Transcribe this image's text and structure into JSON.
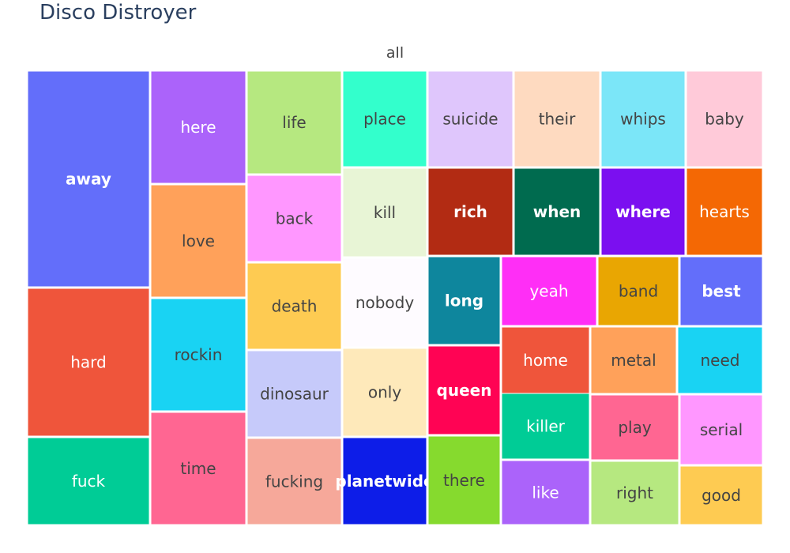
{
  "chart_data": {
    "type": "treemap",
    "title": "Disco Distroyer",
    "root": "all",
    "items": [
      {
        "label": "away",
        "value": 4,
        "color": "#636efa"
      },
      {
        "label": "hard",
        "value": 3,
        "color": "#ef553b"
      },
      {
        "label": "fuck",
        "value": 2,
        "color": "#00cc96"
      },
      {
        "label": "here",
        "value": 2,
        "color": "#ab63fa"
      },
      {
        "label": "love",
        "value": 2,
        "color": "#ffa15a"
      },
      {
        "label": "rockin",
        "value": 2,
        "color": "#19d3f3"
      },
      {
        "label": "time",
        "value": 2,
        "color": "#ff6692"
      },
      {
        "label": "life",
        "value": 2,
        "color": "#b6e880"
      },
      {
        "label": "back",
        "value": 2,
        "color": "#ff97ff"
      },
      {
        "label": "death",
        "value": 2,
        "color": "#fecb52"
      },
      {
        "label": "dinosaur",
        "value": 2,
        "color": "#c6cafa"
      },
      {
        "label": "fucking",
        "value": 2,
        "color": "#f6a89a"
      },
      {
        "label": "place",
        "value": 1,
        "color": "#33ffcc"
      },
      {
        "label": "kill",
        "value": 1,
        "color": "#e8f5d6"
      },
      {
        "label": "nobody",
        "value": 1,
        "color": "#fefbff"
      },
      {
        "label": "only",
        "value": 1,
        "color": "#fee9ba"
      },
      {
        "label": "planetwide",
        "value": 1,
        "color": "#0d1de8"
      },
      {
        "label": "suicide",
        "value": 1,
        "color": "#dfc6fc"
      },
      {
        "label": "their",
        "value": 1,
        "color": "#fedac0"
      },
      {
        "label": "whips",
        "value": 1,
        "color": "#7be6f8"
      },
      {
        "label": "baby",
        "value": 1,
        "color": "#ffcad9"
      },
      {
        "label": "rich",
        "value": 1,
        "color": "#b22b13"
      },
      {
        "label": "when",
        "value": 1,
        "color": "#006b4f"
      },
      {
        "label": "where",
        "value": 1,
        "color": "#7b0ff0"
      },
      {
        "label": "hearts",
        "value": 1,
        "color": "#f46804"
      },
      {
        "label": "long",
        "value": 1,
        "color": "#0e869d"
      },
      {
        "label": "queen",
        "value": 1,
        "color": "#ff0354"
      },
      {
        "label": "there",
        "value": 1,
        "color": "#86da2e"
      },
      {
        "label": "yeah",
        "value": 1,
        "color": "#ff2ef6"
      },
      {
        "label": "band",
        "value": 1,
        "color": "#e9a602"
      },
      {
        "label": "best",
        "value": 1,
        "color": "#636efa"
      },
      {
        "label": "home",
        "value": 1,
        "color": "#ef553b"
      },
      {
        "label": "metal",
        "value": 1,
        "color": "#ffa15a"
      },
      {
        "label": "need",
        "value": 1,
        "color": "#19d3f3"
      },
      {
        "label": "killer",
        "value": 1,
        "color": "#00cc96"
      },
      {
        "label": "play",
        "value": 1,
        "color": "#ff6692"
      },
      {
        "label": "serial",
        "value": 1,
        "color": "#ff97ff"
      },
      {
        "label": "like",
        "value": 1,
        "color": "#ab63fa"
      },
      {
        "label": "right",
        "value": 1,
        "color": "#b6e880"
      },
      {
        "label": "good",
        "value": 1,
        "color": "#fecb52"
      }
    ]
  }
}
